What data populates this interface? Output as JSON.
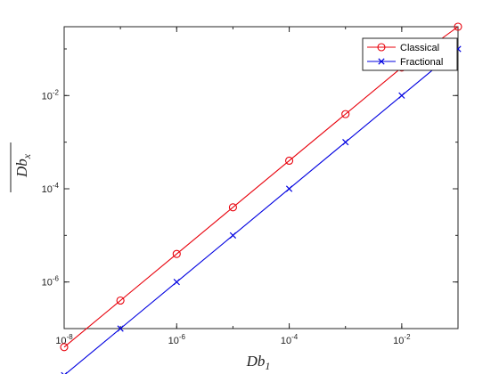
{
  "chart_data": {
    "type": "line",
    "xlabel": "Db",
    "xlabel_sub": "1",
    "ylabel": "Db",
    "ylabel_sub": "x",
    "ylabel_overline": true,
    "xscale": "log",
    "yscale": "log",
    "xlim": [
      1e-08,
      0.1
    ],
    "ylim": [
      1e-07,
      0.3
    ],
    "x_ticks": [
      {
        "value": 1e-08,
        "base": "10",
        "exp": "-8"
      },
      {
        "value": 1e-06,
        "base": "10",
        "exp": "-6"
      },
      {
        "value": 0.0001,
        "base": "10",
        "exp": "-4"
      },
      {
        "value": 0.01,
        "base": "10",
        "exp": "-2"
      }
    ],
    "y_ticks": [
      {
        "value": 1e-06,
        "base": "10",
        "exp": "-6"
      },
      {
        "value": 0.0001,
        "base": "10",
        "exp": "-4"
      },
      {
        "value": 0.01,
        "base": "10",
        "exp": "-2"
      }
    ],
    "grid": false,
    "legend_position": "top-right",
    "series": [
      {
        "name": "Classical",
        "color": "#e8000b",
        "marker": "circle",
        "x": [
          1e-08,
          1e-07,
          1e-06,
          1e-05,
          0.0001,
          0.001,
          0.01,
          0.1
        ],
        "y": [
          4e-08,
          4e-07,
          4e-06,
          4e-05,
          0.0004,
          0.004,
          0.04,
          0.3
        ]
      },
      {
        "name": "Fractional",
        "color": "#0000e0",
        "marker": "x",
        "x": [
          1e-08,
          1e-07,
          1e-06,
          1e-05,
          0.0001,
          0.001,
          0.01,
          0.1
        ],
        "y": [
          1e-08,
          1e-07,
          1e-06,
          1e-05,
          0.0001,
          0.001,
          0.01,
          0.1
        ]
      }
    ]
  }
}
